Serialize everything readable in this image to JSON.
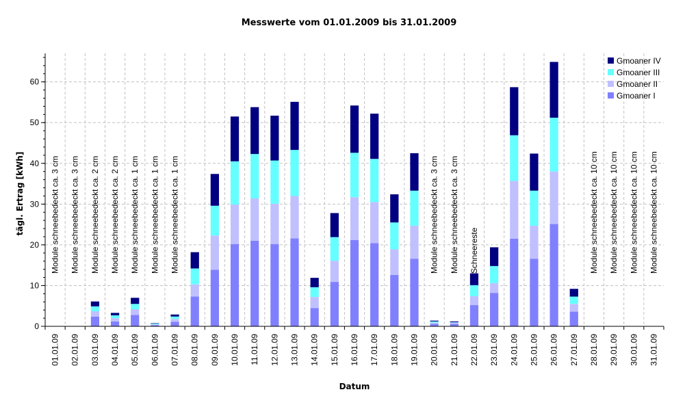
{
  "chart_data": {
    "type": "bar",
    "stacked": true,
    "title": "Messwerte vom 01.01.2009 bis 31.01.2009",
    "xlabel": "Datum",
    "ylabel": "tägl. Ertrag [kWh]",
    "ylim": [
      0,
      67
    ],
    "yticks": [
      0,
      10,
      20,
      30,
      40,
      50,
      60
    ],
    "grid": true,
    "legend_position": "top-right",
    "categories": [
      "01.01.09",
      "02.01.09",
      "03.01.09",
      "04.01.09",
      "05.01.09",
      "06.01.09",
      "07.01.09",
      "08.01.09",
      "09.01.09",
      "10.01.09",
      "11.01.09",
      "12.01.09",
      "13.01.09",
      "14.01.09",
      "15.01.09",
      "16.01.09",
      "17.01.09",
      "18.01.09",
      "19.01.09",
      "20.01.09",
      "21.01.09",
      "22.01.09",
      "23.01.09",
      "24.01.09",
      "25.01.09",
      "26.01.09",
      "27.01.09",
      "28.01.09",
      "29.01.09",
      "30.01.09",
      "31.01.09"
    ],
    "series": [
      {
        "name": "Gmoaner I",
        "color": "#8080ff",
        "values": [
          0,
          0,
          2.4,
          1.2,
          2.8,
          0.3,
          1.1,
          7.3,
          13.9,
          20.2,
          21.0,
          20.2,
          21.6,
          4.5,
          10.9,
          21.2,
          20.4,
          12.6,
          16.6,
          0.6,
          0.6,
          5.2,
          8.2,
          21.5,
          16.6,
          25.1,
          3.6,
          0,
          0,
          0,
          0
        ]
      },
      {
        "name": "Gmoaner II",
        "color": "#c0c0ff",
        "values": [
          0,
          0,
          1.3,
          0.8,
          1.4,
          0.2,
          0.7,
          3.0,
          8.4,
          9.7,
          10.4,
          9.9,
          10.4,
          2.7,
          5.2,
          10.5,
          10.1,
          6.3,
          8.1,
          0.3,
          0.3,
          2.2,
          2.4,
          14.2,
          8.1,
          12.9,
          1.9,
          0,
          0,
          0,
          0
        ]
      },
      {
        "name": "Gmoaner III",
        "color": "#66ffff",
        "values": [
          0,
          0,
          1.2,
          0.7,
          1.3,
          0.2,
          0.6,
          3.9,
          7.3,
          10.6,
          10.9,
          10.6,
          11.3,
          2.4,
          5.8,
          10.9,
          10.6,
          6.6,
          8.6,
          0.3,
          0.1,
          2.7,
          4.2,
          11.2,
          8.6,
          13.2,
          1.8,
          0,
          0,
          0,
          0
        ]
      },
      {
        "name": "Gmoaner IV",
        "color": "#000080",
        "values": [
          0,
          0,
          1.2,
          0.6,
          1.5,
          0.1,
          0.5,
          4.0,
          7.8,
          11.0,
          11.5,
          11.0,
          11.8,
          2.3,
          5.9,
          11.6,
          11.1,
          6.9,
          9.2,
          0.2,
          0.2,
          2.9,
          4.6,
          11.8,
          9.1,
          13.7,
          1.9,
          0,
          0,
          0,
          0
        ]
      }
    ],
    "annotations": [
      {
        "category": "01.01.09",
        "text": "Module schneebedeckt ca. 3 cm"
      },
      {
        "category": "02.01.09",
        "text": "Module schneebedeckt ca. 3 cm"
      },
      {
        "category": "03.01.09",
        "text": "Module schneebedeckt ca. 2 cm"
      },
      {
        "category": "04.01.09",
        "text": "Module schneebedeckt ca. 2 cm"
      },
      {
        "category": "05.01.09",
        "text": "Module schneebedeckt ca. 1 cm"
      },
      {
        "category": "06.01.09",
        "text": "Module schneebedeckt ca. 1 cm"
      },
      {
        "category": "07.01.09",
        "text": "Module schneebedeckt ca. 1 cm"
      },
      {
        "category": "20.01.09",
        "text": "Module schneebedeckt ca. 3 cm"
      },
      {
        "category": "21.01.09",
        "text": "Module schneebedeckt ca. 3 cm"
      },
      {
        "category": "22.01.09",
        "text": "Schneereste"
      },
      {
        "category": "28.01.09",
        "text": "Module schneebedeckt ca. 10 cm"
      },
      {
        "category": "29.01.09",
        "text": "Module schneebedeckt ca. 10 cm"
      },
      {
        "category": "30.01.09",
        "text": "Module schneebedeckt ca. 10 cm"
      },
      {
        "category": "31.01.09",
        "text": "Module schneebedeckt ca. 10 cm"
      }
    ]
  }
}
